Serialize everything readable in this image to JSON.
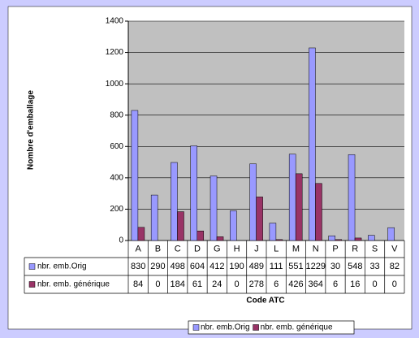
{
  "chart_data": {
    "type": "bar",
    "categories": [
      "A",
      "B",
      "C",
      "D",
      "G",
      "H",
      "J",
      "L",
      "M",
      "N",
      "P",
      "R",
      "S",
      "V"
    ],
    "series": [
      {
        "name": "nbr. emb.Orig",
        "color": "#9999ff",
        "values": [
          830,
          290,
          498,
          604,
          412,
          190,
          489,
          111,
          551,
          1229,
          30,
          548,
          33,
          82
        ]
      },
      {
        "name": "nbr. emb. générique",
        "color": "#993366",
        "values": [
          84,
          0,
          184,
          61,
          24,
          0,
          278,
          6,
          426,
          364,
          6,
          16,
          0,
          0
        ]
      }
    ],
    "ylabel": "Nombre d'emballage",
    "xlabel": "Code ATC",
    "ylim": [
      0,
      1400
    ],
    "yticks": [
      0,
      200,
      400,
      600,
      800,
      1000,
      1200,
      1400
    ],
    "grid": true
  }
}
